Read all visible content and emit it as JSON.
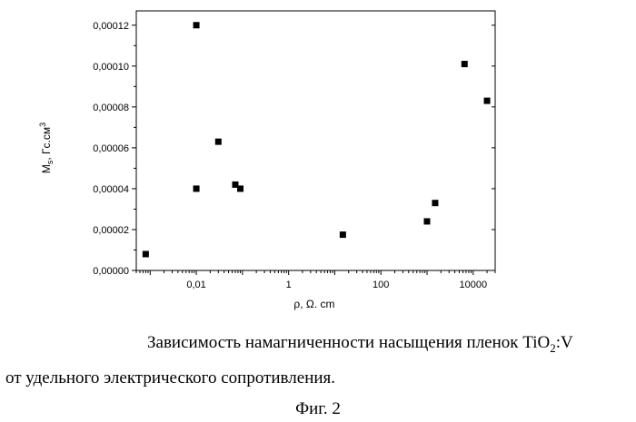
{
  "chart_data": {
    "type": "scatter",
    "title": "",
    "xlabel": "ρ, Ω. cm",
    "ylabel_main": "M",
    "ylabel_sub": "s",
    "ylabel_rest": ", Гс.см",
    "ylabel_sup": "3",
    "xscale": "log",
    "xlim": [
      0.0005,
      30000
    ],
    "ylim": [
      0,
      0.000127
    ],
    "grid": false,
    "legend": "none",
    "marker_color": "#000000",
    "x_ticks": [
      {
        "value": 0.01,
        "label": "0,01"
      },
      {
        "value": 1,
        "label": "1"
      },
      {
        "value": 100,
        "label": "100"
      },
      {
        "value": 10000,
        "label": "10000"
      }
    ],
    "y_ticks": [
      {
        "value": 0,
        "label": "0,00000"
      },
      {
        "value": 2e-05,
        "label": "0,00002"
      },
      {
        "value": 4e-05,
        "label": "0,00004"
      },
      {
        "value": 6e-05,
        "label": "0,00006"
      },
      {
        "value": 8e-05,
        "label": "0,00008"
      },
      {
        "value": 0.0001,
        "label": "0,00010"
      },
      {
        "value": 0.00012,
        "label": "0,00012"
      }
    ],
    "points": [
      {
        "x": 0.0008,
        "y": 8e-06
      },
      {
        "x": 0.01,
        "y": 0.00012
      },
      {
        "x": 0.01,
        "y": 4e-05
      },
      {
        "x": 0.03,
        "y": 6.3e-05
      },
      {
        "x": 0.07,
        "y": 4.2e-05
      },
      {
        "x": 0.09,
        "y": 4e-05
      },
      {
        "x": 15,
        "y": 1.75e-05
      },
      {
        "x": 1000,
        "y": 2.4e-05
      },
      {
        "x": 1500,
        "y": 3.3e-05
      },
      {
        "x": 6500,
        "y": 0.000101
      },
      {
        "x": 20000,
        "y": 8.3e-05
      }
    ]
  },
  "caption": {
    "line1_text": "Зависимость намагниченности насыщения пленок TiO",
    "line1_sub": "2",
    "line1_end": ":V",
    "line2": "от удельного электрического сопротивления.",
    "figure_label": "Фиг. 2"
  }
}
